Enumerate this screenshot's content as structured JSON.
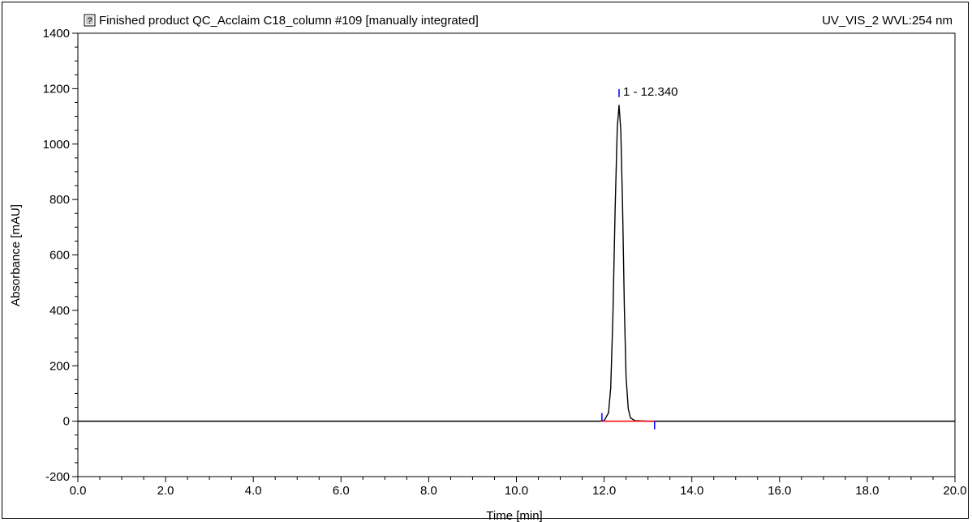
{
  "header": {
    "title": "Finished product QC_Acclaim C18_column #109 [manually integrated]",
    "channel": "UV_VIS_2 WVL:254 nm",
    "icon": "help-icon"
  },
  "chart_data": {
    "type": "line",
    "title": "Finished product QC_Acclaim C18_column #109 [manually integrated]",
    "xlabel": "Time [min]",
    "ylabel": "Absorbance [mAU]",
    "xlim": [
      0,
      20
    ],
    "ylim": [
      -200,
      1400
    ],
    "xticks": [
      "0.0",
      "2.0",
      "4.0",
      "6.0",
      "8.0",
      "10.0",
      "12.0",
      "14.0",
      "16.0",
      "18.0",
      "20.0"
    ],
    "yticks": [
      "-200",
      "0",
      "200",
      "400",
      "600",
      "800",
      "1000",
      "1200",
      "1400"
    ],
    "grid": false,
    "series": [
      {
        "color": "#000000",
        "x": [
          0,
          11.9,
          12.0,
          12.1,
          12.15,
          12.2,
          12.25,
          12.3,
          12.34,
          12.38,
          12.42,
          12.46,
          12.5,
          12.55,
          12.6,
          12.7,
          13.0,
          20.0
        ],
        "y": [
          0,
          0,
          2,
          30,
          120,
          380,
          760,
          1060,
          1140,
          1050,
          780,
          420,
          160,
          45,
          12,
          2,
          0,
          0
        ]
      }
    ],
    "peaks": [
      {
        "label": "1 - 12.340",
        "time": 12.34,
        "height": 1140,
        "start": 11.95,
        "end": 13.15
      }
    ],
    "baseline_color": "#ff0000",
    "marker_color": "#0000ff"
  }
}
